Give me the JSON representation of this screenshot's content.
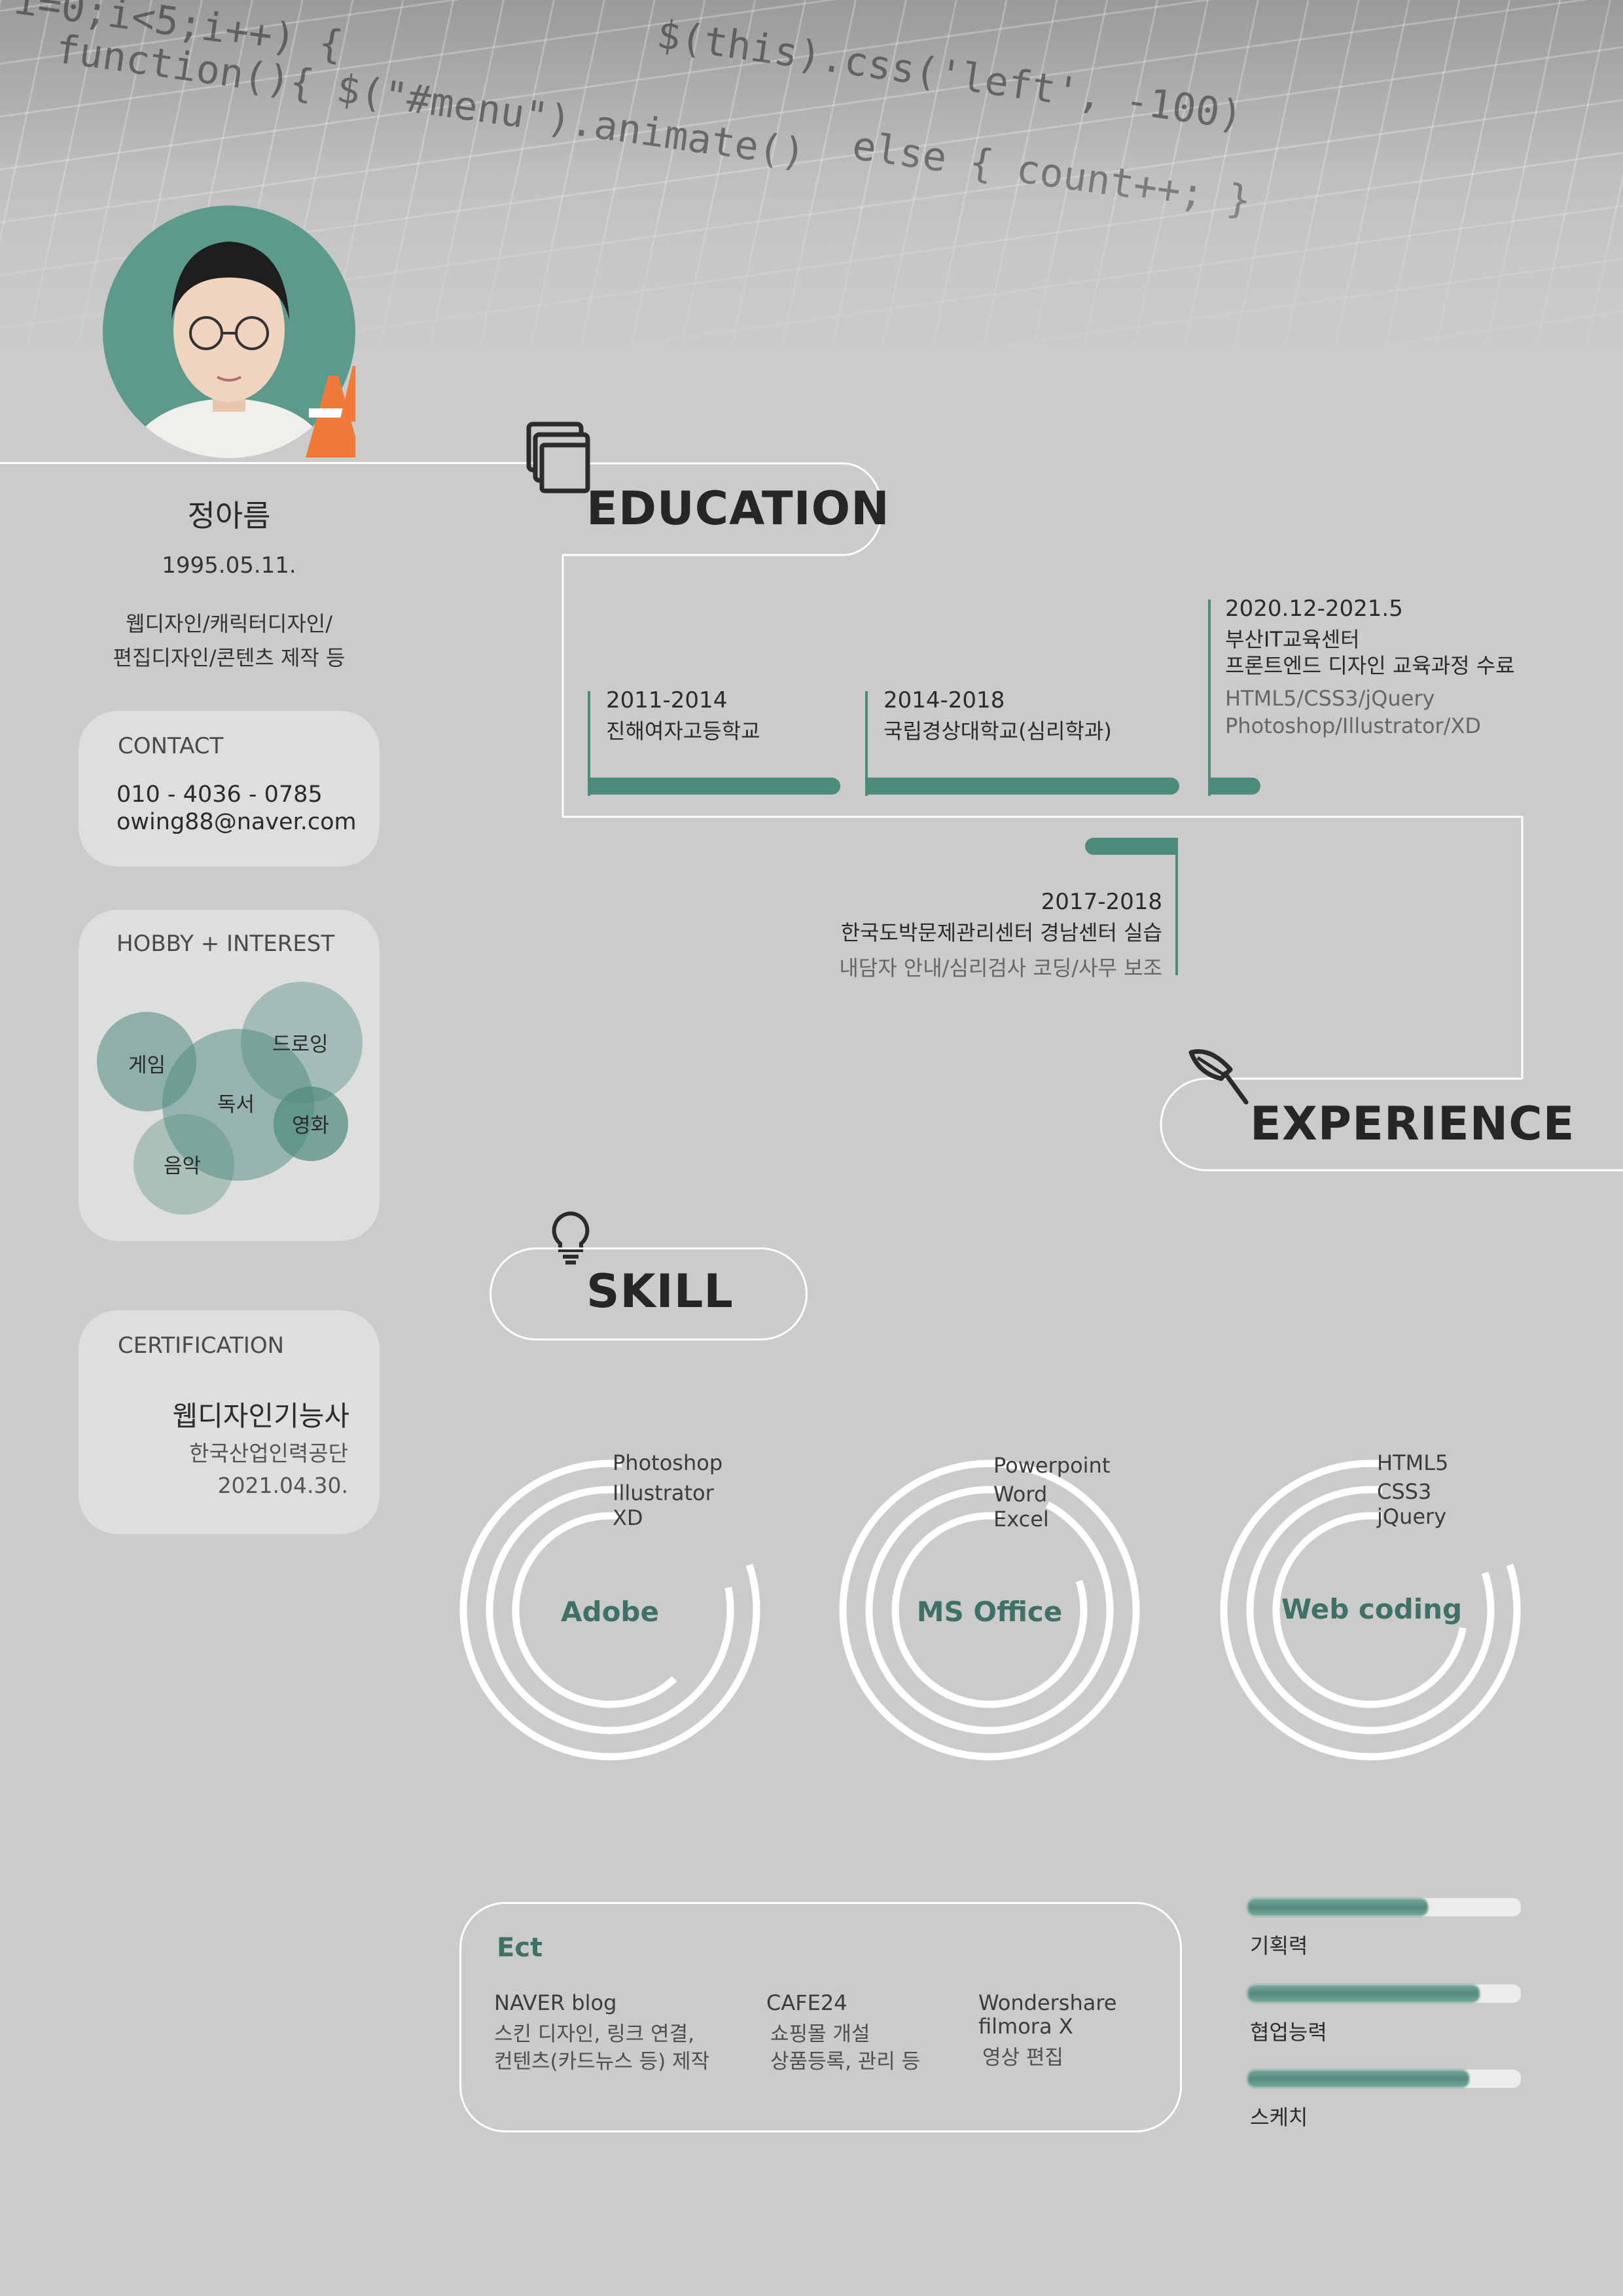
{
  "profile": {
    "name": "정아름",
    "birth": "1995.05.11.",
    "roles_line1": "웹디자인/캐릭터디자인/",
    "roles_line2": "편집디자인/콘텐츠 제작 등"
  },
  "contact": {
    "title": "CONTACT",
    "phone": "010 - 4036 - 0785",
    "email": "owing88@naver.com"
  },
  "hobby": {
    "title": "HOBBY + INTEREST",
    "items": [
      "게임",
      "드로잉",
      "독서",
      "영화",
      "음악"
    ]
  },
  "certification": {
    "title": "CERTIFICATION",
    "name": "웹디자인기능사",
    "issuer": "한국산업인력공단",
    "date": "2021.04.30."
  },
  "education": {
    "title": "EDUCATION",
    "items": [
      {
        "date": "2011-2014",
        "name": "진해여자고등학교"
      },
      {
        "date": "2014-2018",
        "name": "국립경상대학교(심리학과)"
      },
      {
        "date": "2020.12-2021.5",
        "name": "부산IT교육센터",
        "name2": "프론트엔드 디자인 교육과정 수료",
        "sub1": "HTML5/CSS3/jQuery",
        "sub2": "Photoshop/Illustrator/XD"
      }
    ]
  },
  "experience": {
    "title": "EXPERIENCE",
    "items": [
      {
        "date": "2017-2018",
        "name": "한국도박문제관리센터 경남센터 실습",
        "sub": "내담자 안내/심리검사 코딩/사무 보조"
      }
    ]
  },
  "skill": {
    "title": "SKILL",
    "groups": [
      {
        "title": "Adobe",
        "items": [
          "Photoshop",
          "Illustrator",
          "XD"
        ],
        "levels": [
          0.8,
          0.78,
          0.62
        ]
      },
      {
        "title": "MS Office",
        "items": [
          "Powerpoint",
          "Word",
          "Excel"
        ],
        "levels": [
          1.0,
          0.92,
          0.8
        ]
      },
      {
        "title": "Web coding",
        "items": [
          "HTML5",
          "CSS3",
          "jQuery"
        ],
        "levels": [
          0.8,
          0.8,
          0.72
        ]
      }
    ]
  },
  "ect": {
    "title": "Ect",
    "items": [
      {
        "head": "NAVER blog",
        "line1": "스킨 디자인, 링크 연결,",
        "line2": "컨텐츠(카드뉴스 등) 제작"
      },
      {
        "head": "CAFE24",
        "line1": "쇼핑몰 개설",
        "line2": "상품등록, 관리 등"
      },
      {
        "head": "Wondershare",
        "head2": "filmora X",
        "line1": "영상 편집"
      }
    ]
  },
  "abilities": [
    {
      "label": "기획력",
      "level": 0.66
    },
    {
      "label": "협업능력",
      "level": 0.85
    },
    {
      "label": "스케치",
      "level": 0.81
    }
  ],
  "colors": {
    "accent": "#4e8a7c",
    "background": "#cbcbcb",
    "box": "#dedede"
  }
}
